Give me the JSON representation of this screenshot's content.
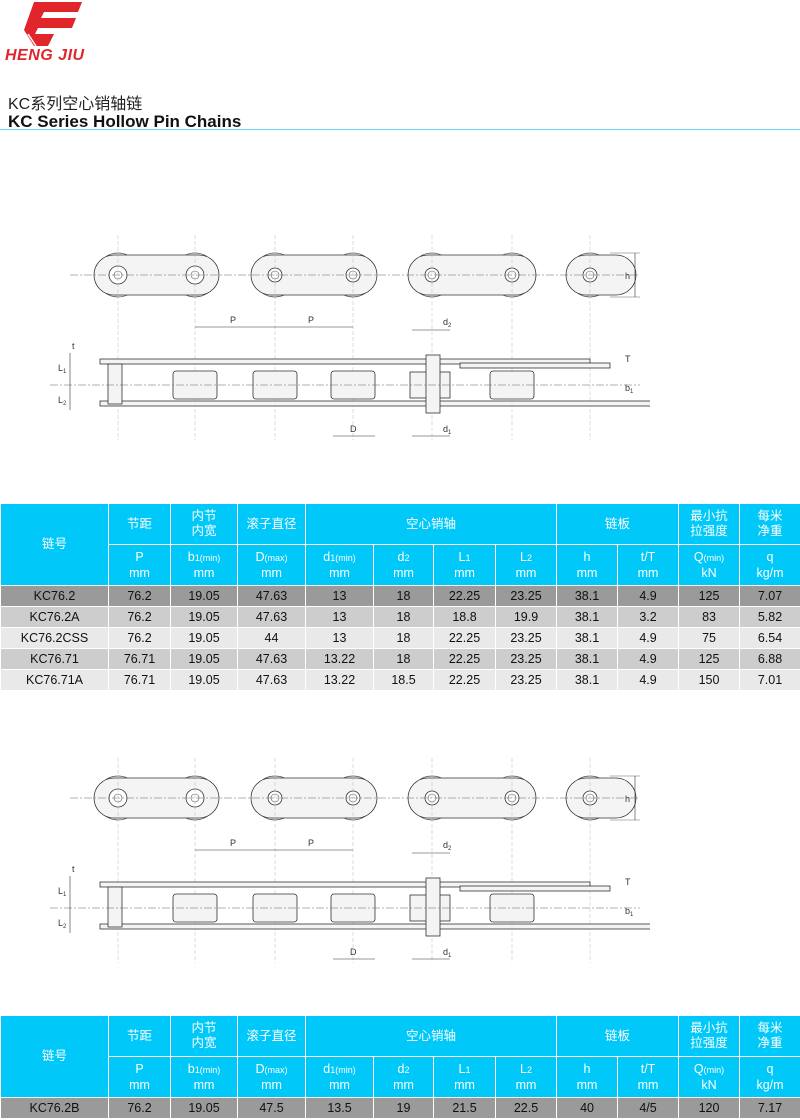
{
  "brand": {
    "name": "HENG JIU",
    "logo_color": "#e0252b"
  },
  "title": {
    "cn": "KC系列空心销轴链",
    "en": "KC Series Hollow Pin Chains"
  },
  "drawing": {
    "labels": {
      "P": "P",
      "h": "h",
      "d2": {
        "m": "d",
        "s": "2"
      },
      "d1": {
        "m": "d",
        "s": "1"
      },
      "D": "D",
      "L1": {
        "m": "L",
        "s": "1"
      },
      "L2": {
        "m": "L",
        "s": "2"
      },
      "T": "T",
      "t": "t",
      "b1": {
        "m": "b",
        "s": "1"
      }
    }
  },
  "table_header": {
    "chain_no": "链号",
    "groups": [
      "节距",
      "内节\n内宽",
      "滚子直径",
      "空心销轴",
      "链板",
      "最小抗\n拉强度",
      "每米\n净重"
    ],
    "units": [
      {
        "s": "P",
        "sub": "",
        "n": "",
        "u": "mm"
      },
      {
        "s": "b",
        "sub": "1",
        "n": "(min)",
        "u": "mm"
      },
      {
        "s": "D",
        "sub": "",
        "n": "(max)",
        "u": "mm"
      },
      {
        "s": "d",
        "sub": "1",
        "n": "(min)",
        "u": "mm"
      },
      {
        "s": "d",
        "sub": "2",
        "n": "",
        "u": "mm"
      },
      {
        "s": "L",
        "sub": "1",
        "n": "",
        "u": "mm"
      },
      {
        "s": "L",
        "sub": "2",
        "n": "",
        "u": "mm"
      },
      {
        "s": "h",
        "sub": "",
        "n": "",
        "u": "mm"
      },
      {
        "s": "t/T",
        "sub": "",
        "n": "",
        "u": "mm"
      },
      {
        "s": "Q",
        "sub": "",
        "n": "(min)",
        "u": "kN"
      },
      {
        "s": "q",
        "sub": "",
        "n": "",
        "u": "kg/m"
      }
    ]
  },
  "table1_rows": [
    [
      "KC76.2",
      "76.2",
      "19.05",
      "47.63",
      "13",
      "18",
      "22.25",
      "23.25",
      "38.1",
      "4.9",
      "125",
      "7.07"
    ],
    [
      "KC76.2A",
      "76.2",
      "19.05",
      "47.63",
      "13",
      "18",
      "18.8",
      "19.9",
      "38.1",
      "3.2",
      "83",
      "5.82"
    ],
    [
      "KC76.2CSS",
      "76.2",
      "19.05",
      "44",
      "13",
      "18",
      "22.25",
      "23.25",
      "38.1",
      "4.9",
      "75",
      "6.54"
    ],
    [
      "KC76.71",
      "76.71",
      "19.05",
      "47.63",
      "13.22",
      "18",
      "22.25",
      "23.25",
      "38.1",
      "4.9",
      "125",
      "6.88"
    ],
    [
      "KC76.71A",
      "76.71",
      "19.05",
      "47.63",
      "13.22",
      "18.5",
      "22.25",
      "23.25",
      "38.1",
      "4.9",
      "150",
      "7.01"
    ]
  ],
  "table2_rows": [
    [
      "KC76.2B",
      "76.2",
      "19.05",
      "47.5",
      "13.5",
      "19",
      "21.5",
      "22.5",
      "40",
      "4/5",
      "120",
      "7.17"
    ]
  ],
  "colors": {
    "header": "#00c8f8",
    "row_dark": "#9a9a9a",
    "row_mid": "#cdcdcd",
    "row_light": "#e9e9e9"
  }
}
